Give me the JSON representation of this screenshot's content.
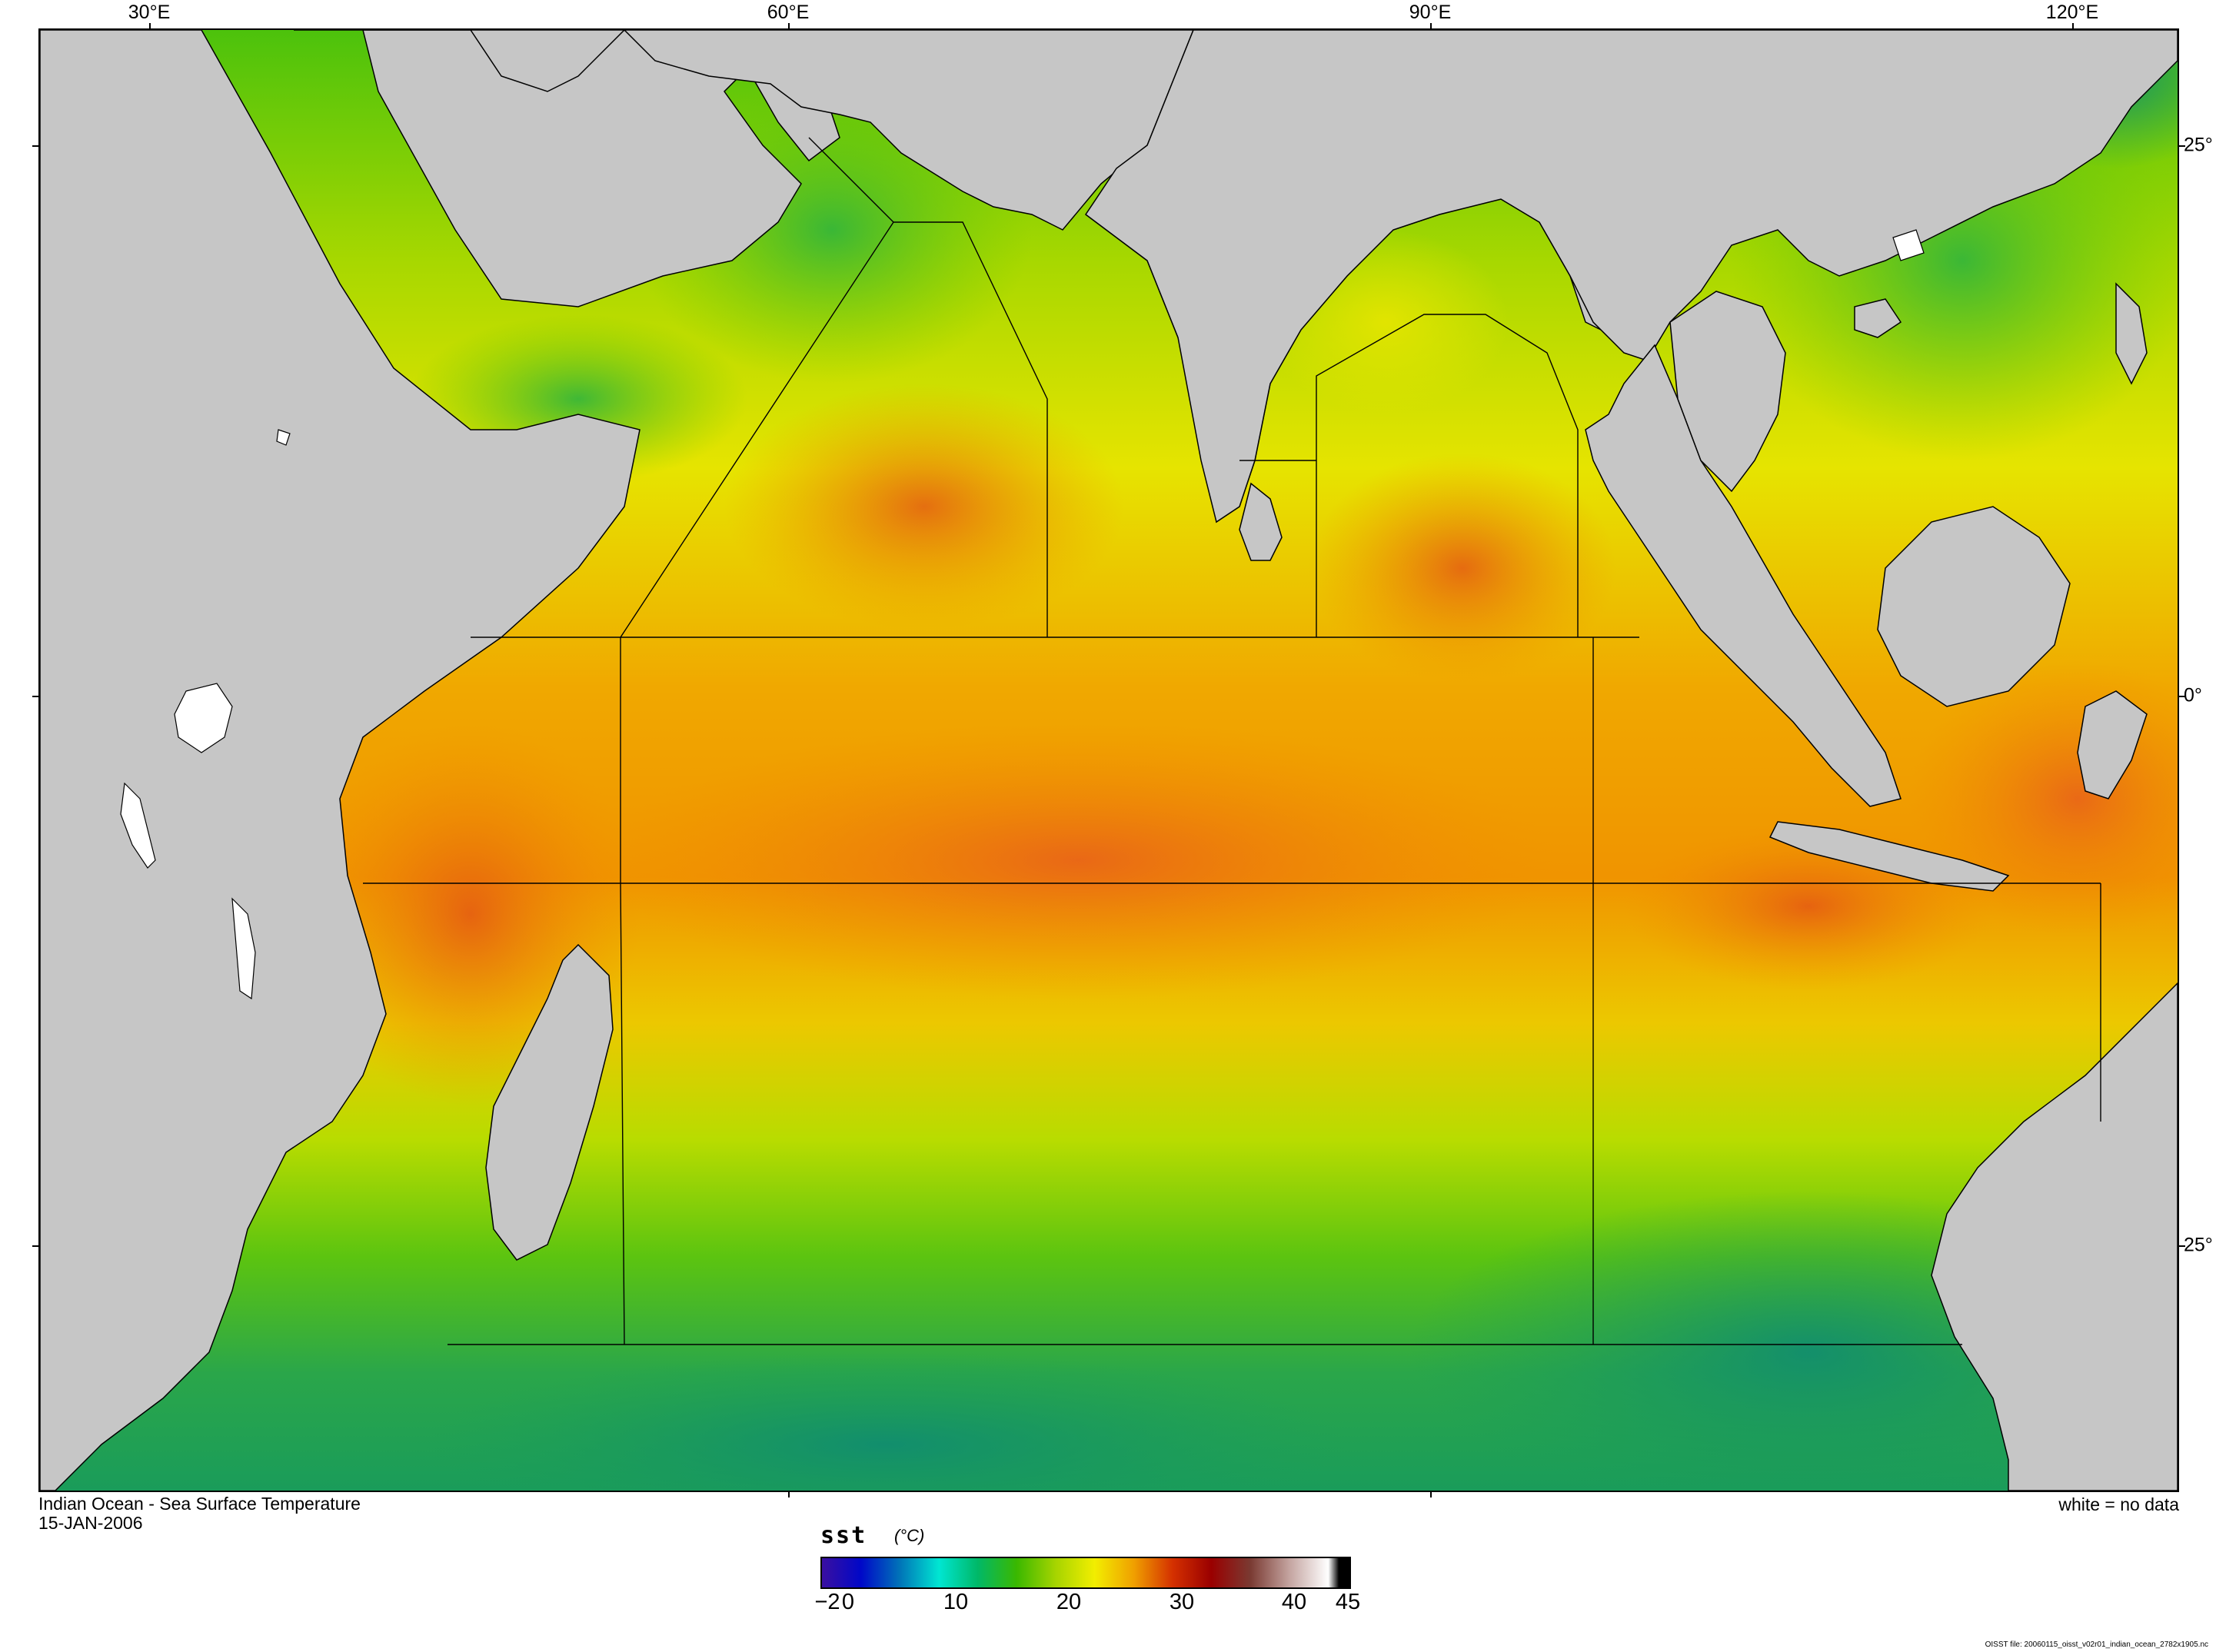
{
  "map": {
    "title": "Indian Ocean - Sea Surface Temperature",
    "date": "15-JAN-2006",
    "no_data_note": "white = no data",
    "source_note": "OISST file: 20060115_oisst_v02r01_indian_ocean_2782x1905.nc",
    "longitude_labels": [
      "30°E",
      "60°E",
      "90°E",
      "120°E"
    ],
    "latitude_labels": [
      "25°",
      "0°",
      "25°"
    ],
    "land_color": "#c6c6c6",
    "no_data_color": "#ffffff"
  },
  "colorbar": {
    "variable": "sst",
    "unit": "(°C)",
    "ticks": [
      "−2",
      "0",
      "10",
      "20",
      "30",
      "40",
      "45"
    ],
    "range": [
      -2,
      45
    ],
    "colors": [
      "#3a0fa0",
      "#0008c8",
      "#0074b8",
      "#00e6d2",
      "#00b868",
      "#3ab800",
      "#a6d400",
      "#f2ee00",
      "#f0a000",
      "#d43000",
      "#9a0000",
      "#7a3a32",
      "#c4a4a0",
      "#ffffff",
      "#000000"
    ]
  },
  "legend_sst_samples": {
    "cool_south": "#1a9c5a",
    "green": "#4cc20c",
    "yellow": "#e8e800",
    "orange": "#f08c00",
    "red_orange": "#e05a10"
  }
}
